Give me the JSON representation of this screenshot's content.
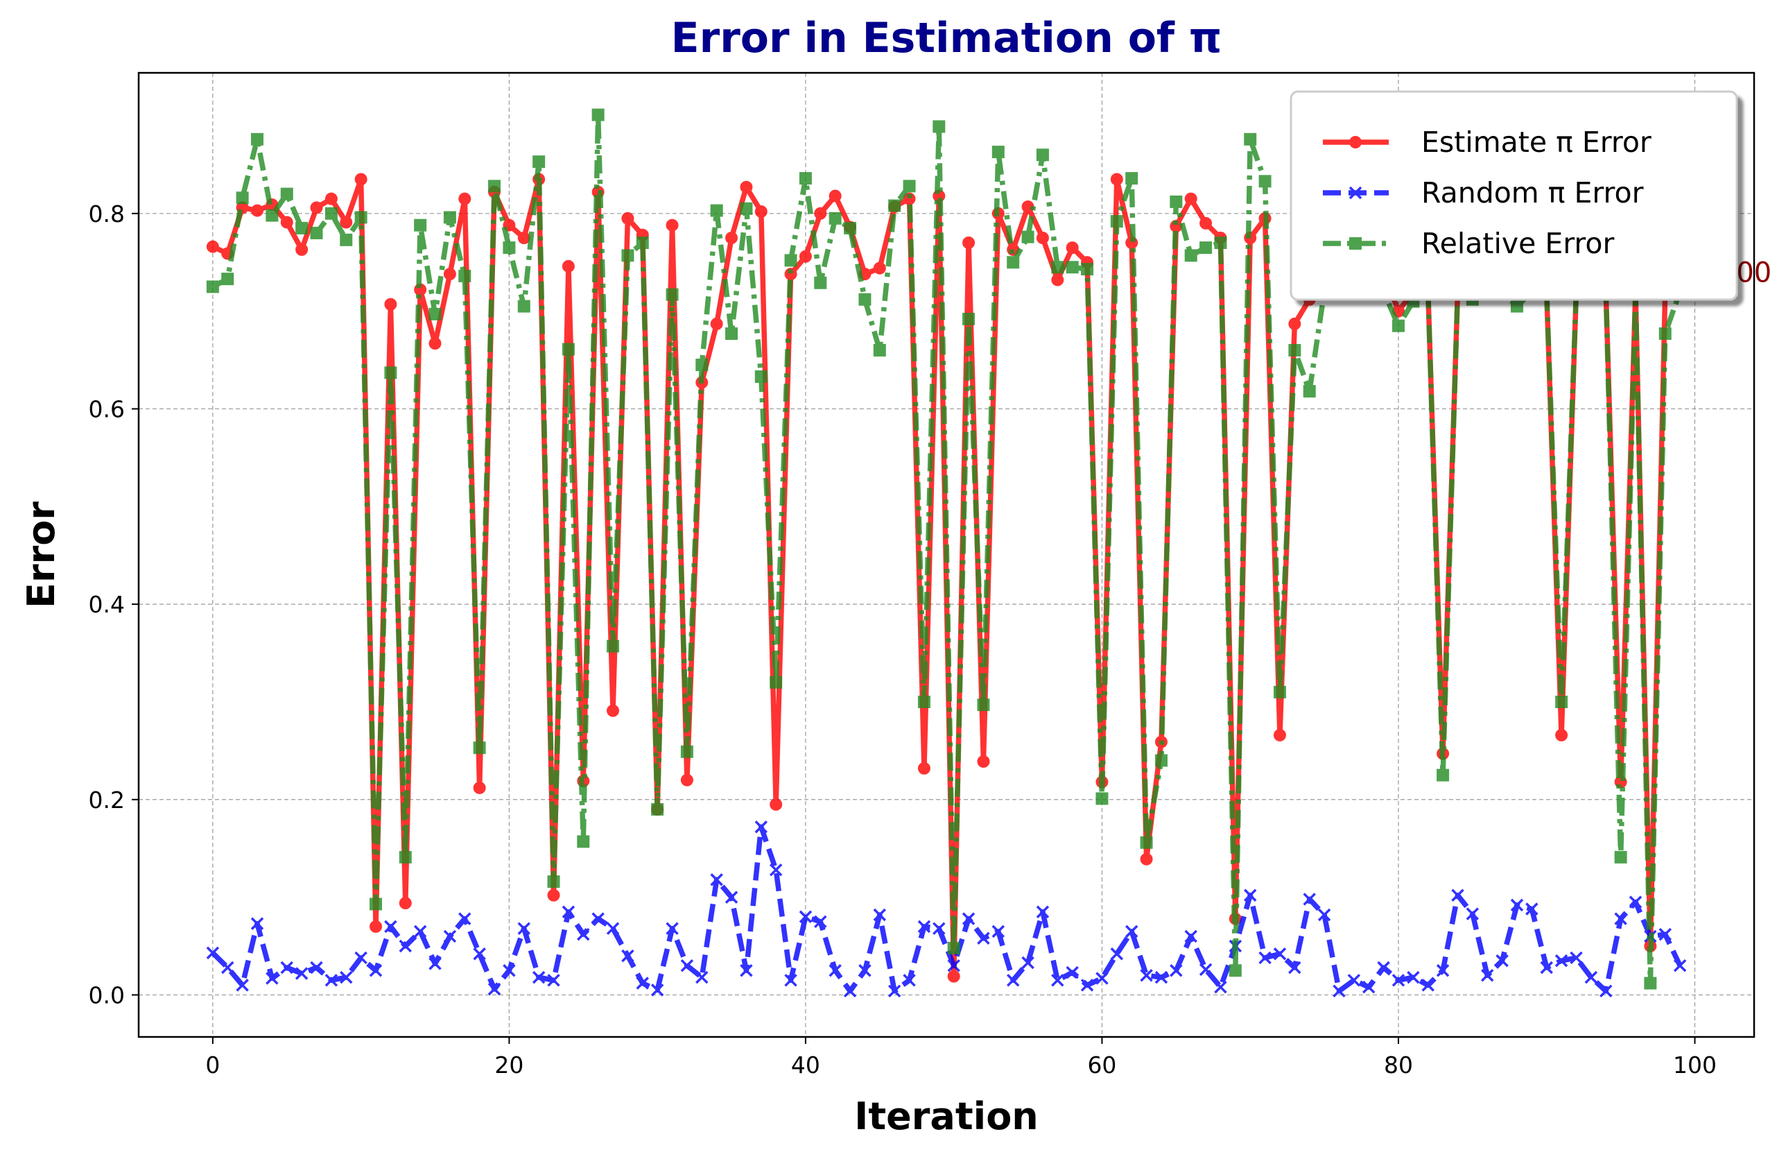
{
  "chart_data": {
    "type": "line",
    "title": "Error in Estimation of π",
    "xlabel": "Iteration",
    "ylabel": "Error",
    "xlim": [
      -5,
      104
    ],
    "ylim": [
      -0.043,
      0.944
    ],
    "xticks": [
      0,
      20,
      40,
      60,
      80,
      100
    ],
    "yticks": [
      0.0,
      0.2,
      0.4,
      0.6,
      0.8
    ],
    "xtick_labels": [
      "0",
      "20",
      "40",
      "60",
      "80",
      "100"
    ],
    "ytick_labels": [
      "0.0",
      "0.2",
      "0.4",
      "0.6",
      "0.8"
    ],
    "grid": true,
    "legend_position": "top-right",
    "annotation": {
      "text": "00",
      "x": 102.8,
      "y": 0.74,
      "color": "#8b0000"
    },
    "title_color": "#00008b",
    "x": [
      0,
      1,
      2,
      3,
      4,
      5,
      6,
      7,
      8,
      9,
      10,
      11,
      12,
      13,
      14,
      15,
      16,
      17,
      18,
      19,
      20,
      21,
      22,
      23,
      24,
      25,
      26,
      27,
      28,
      29,
      30,
      31,
      32,
      33,
      34,
      35,
      36,
      37,
      38,
      39,
      40,
      41,
      42,
      43,
      44,
      45,
      46,
      47,
      48,
      49,
      50,
      51,
      52,
      53,
      54,
      55,
      56,
      57,
      58,
      59,
      60,
      61,
      62,
      63,
      64,
      65,
      66,
      67,
      68,
      69,
      70,
      71,
      72,
      73,
      74,
      75,
      76,
      77,
      78,
      79,
      80,
      81,
      82,
      83,
      84,
      85,
      86,
      87,
      88,
      89,
      90,
      91,
      92,
      93,
      94,
      95,
      96,
      97,
      98,
      99
    ],
    "series": [
      {
        "name": "Estimate π Error",
        "color": "#ff0000",
        "marker": "circle",
        "linestyle": "solid",
        "values": [
          0.766,
          0.759,
          0.806,
          0.803,
          0.809,
          0.791,
          0.763,
          0.806,
          0.815,
          0.791,
          0.835,
          0.07,
          0.707,
          0.094,
          0.722,
          0.667,
          0.738,
          0.815,
          0.212,
          0.822,
          0.788,
          0.775,
          0.835,
          0.102,
          0.746,
          0.219,
          0.822,
          0.291,
          0.795,
          0.778,
          0.19,
          0.788,
          0.22,
          0.627,
          0.687,
          0.775,
          0.827,
          0.802,
          0.195,
          0.738,
          0.756,
          0.8,
          0.818,
          0.786,
          0.738,
          0.744,
          0.807,
          0.815,
          0.232,
          0.818,
          0.019,
          0.77,
          0.239,
          0.8,
          0.763,
          0.807,
          0.775,
          0.732,
          0.765,
          0.75,
          0.218,
          0.835,
          0.77,
          0.139,
          0.259,
          0.787,
          0.815,
          0.79,
          0.775,
          0.078,
          0.775,
          0.795,
          0.266,
          0.687,
          0.712,
          0.74,
          0.74,
          0.74,
          0.74,
          0.74,
          0.7,
          0.72,
          0.72,
          0.247,
          0.72,
          0.72,
          0.72,
          0.72,
          0.72,
          0.72,
          0.72,
          0.266,
          0.72,
          0.72,
          0.72,
          0.218,
          0.72,
          0.05,
          0.72,
          0.72
        ]
      },
      {
        "name": "Random π Error",
        "color": "#0000ff",
        "marker": "x",
        "linestyle": "dashed",
        "values": [
          0.043,
          0.028,
          0.01,
          0.073,
          0.017,
          0.028,
          0.022,
          0.028,
          0.015,
          0.018,
          0.038,
          0.025,
          0.07,
          0.05,
          0.065,
          0.032,
          0.06,
          0.078,
          0.042,
          0.006,
          0.025,
          0.068,
          0.018,
          0.015,
          0.085,
          0.062,
          0.078,
          0.068,
          0.04,
          0.012,
          0.005,
          0.068,
          0.03,
          0.018,
          0.118,
          0.1,
          0.025,
          0.172,
          0.128,
          0.015,
          0.08,
          0.075,
          0.025,
          0.004,
          0.025,
          0.082,
          0.004,
          0.015,
          0.07,
          0.068,
          0.03,
          0.078,
          0.058,
          0.065,
          0.015,
          0.033,
          0.085,
          0.015,
          0.023,
          0.01,
          0.017,
          0.042,
          0.065,
          0.02,
          0.018,
          0.025,
          0.06,
          0.026,
          0.008,
          0.05,
          0.102,
          0.038,
          0.042,
          0.028,
          0.098,
          0.082,
          0.004,
          0.015,
          0.008,
          0.028,
          0.015,
          0.018,
          0.01,
          0.025,
          0.102,
          0.083,
          0.02,
          0.035,
          0.092,
          0.088,
          0.028,
          0.035,
          0.038,
          0.018,
          0.004,
          0.078,
          0.095,
          0.06,
          0.062,
          0.03
        ]
      },
      {
        "name": "Relative Error",
        "color": "#228b22",
        "marker": "square",
        "linestyle": "dashdot",
        "values": [
          0.725,
          0.733,
          0.816,
          0.876,
          0.798,
          0.82,
          0.785,
          0.78,
          0.8,
          0.773,
          0.796,
          0.093,
          0.637,
          0.141,
          0.788,
          0.697,
          0.796,
          0.736,
          0.253,
          0.828,
          0.765,
          0.705,
          0.853,
          0.116,
          0.661,
          0.157,
          0.901,
          0.357,
          0.757,
          0.77,
          0.19,
          0.717,
          0.249,
          0.645,
          0.803,
          0.677,
          0.805,
          0.633,
          0.32,
          0.752,
          0.836,
          0.729,
          0.795,
          0.785,
          0.712,
          0.66,
          0.808,
          0.828,
          0.3,
          0.889,
          0.048,
          0.692,
          0.297,
          0.863,
          0.75,
          0.776,
          0.86,
          0.745,
          0.745,
          0.743,
          0.201,
          0.792,
          0.836,
          0.156,
          0.24,
          0.812,
          0.757,
          0.765,
          0.77,
          0.025,
          0.876,
          0.833,
          0.31,
          0.66,
          0.618,
          0.72,
          0.72,
          0.72,
          0.72,
          0.72,
          0.685,
          0.71,
          0.72,
          0.225,
          0.72,
          0.712,
          0.72,
          0.72,
          0.705,
          0.72,
          0.72,
          0.3,
          0.72,
          0.72,
          0.72,
          0.141,
          0.72,
          0.012,
          0.677,
          0.72
        ]
      }
    ]
  }
}
